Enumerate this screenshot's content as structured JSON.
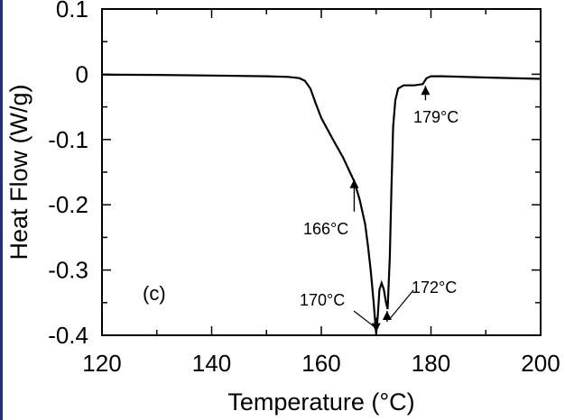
{
  "chart_data": {
    "type": "line",
    "panel_label": "(c)",
    "xlabel": "Temperature (°C)",
    "ylabel": "Heat Flow (W/g)",
    "xlim": [
      120,
      200
    ],
    "ylim": [
      -0.4,
      0.1
    ],
    "x_ticks": [
      120,
      140,
      160,
      180,
      200
    ],
    "y_ticks": [
      0.1,
      0,
      -0.1,
      -0.2,
      -0.3,
      -0.4
    ],
    "x_tick_labels": [
      "120",
      "140",
      "160",
      "180",
      "200"
    ],
    "y_tick_labels": [
      "0.1",
      "0",
      "-0.1",
      "-0.2",
      "-0.3",
      "-0.4"
    ],
    "grid": false,
    "series": [
      {
        "x": [
          120,
          130,
          140,
          150,
          154,
          156,
          157,
          158,
          159,
          160,
          162,
          164,
          166,
          167,
          168,
          168.5,
          169,
          169.5,
          170,
          170.3,
          170.6,
          171,
          171.4,
          171.8,
          172.1,
          172.5,
          172.8,
          173.1,
          173.5,
          174,
          175,
          177,
          178.5,
          179.2,
          180,
          182,
          190,
          200
        ],
        "y": [
          -0.0005,
          -0.001,
          -0.002,
          -0.003,
          -0.004,
          -0.006,
          -0.01,
          -0.022,
          -0.045,
          -0.067,
          -0.098,
          -0.128,
          -0.164,
          -0.192,
          -0.23,
          -0.262,
          -0.3,
          -0.345,
          -0.398,
          -0.37,
          -0.33,
          -0.32,
          -0.33,
          -0.35,
          -0.36,
          -0.28,
          -0.17,
          -0.08,
          -0.04,
          -0.022,
          -0.017,
          -0.017,
          -0.015,
          -0.006,
          -0.003,
          -0.003,
          -0.005,
          -0.007
        ]
      }
    ],
    "annotations": [
      {
        "text": "166°C",
        "x": 166,
        "y": -0.158
      },
      {
        "text": "170°C",
        "x": 170,
        "y": -0.398
      },
      {
        "text": "172°C",
        "x": 172,
        "y": -0.36
      },
      {
        "text": "179°C",
        "x": 179,
        "y": -0.015
      }
    ]
  }
}
